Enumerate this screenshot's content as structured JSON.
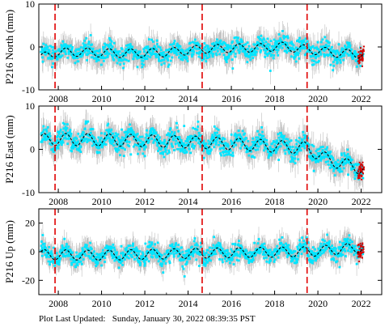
{
  "footer": {
    "label": "Plot Last Updated:",
    "timestamp": "Sunday, January 30, 2022 08:39:35 PST"
  },
  "colors": {
    "errorbar": "#b4b4b4",
    "data": "#00e5ff",
    "model": "#000000",
    "recent": "#d40000",
    "event_line": "#e00000"
  },
  "chart_data": [
    {
      "type": "scatter",
      "title": "",
      "ylabel": "P216 North (mm)",
      "xlim": [
        2007.1,
        2022.95
      ],
      "ylim": [
        -10,
        10
      ],
      "x_ticks": [
        2008,
        2010,
        2012,
        2014,
        2016,
        2018,
        2020,
        2022
      ],
      "x_tick_labels": [
        "2008",
        "2010",
        "2012",
        "2014",
        "2016",
        "2018",
        "2020",
        "2022"
      ],
      "y_ticks": [
        -10,
        0,
        10
      ],
      "y_tick_labels": [
        "-10",
        "0",
        "10"
      ],
      "event_lines_x": [
        2007.85,
        2014.65,
        2019.5
      ],
      "model_keypoints": {
        "x": [
          2007.2,
          2007.85,
          2009,
          2011,
          2013,
          2014.65,
          2016,
          2017.5,
          2018.2,
          2019.5,
          2021,
          2022.1
        ],
        "y": [
          -2.5,
          -1.3,
          -1.2,
          -1.5,
          -1.3,
          -0.5,
          -0.3,
          -0.2,
          0.2,
          -0.6,
          -1.5,
          -1.6
        ]
      },
      "seasonal_amplitude": 1.0,
      "noise_spread": 2.2
    },
    {
      "type": "scatter",
      "title": "",
      "ylabel": "P216 East (mm)",
      "xlim": [
        2007.1,
        2022.95
      ],
      "ylim": [
        -10,
        10
      ],
      "x_ticks": [
        2008,
        2010,
        2012,
        2014,
        2016,
        2018,
        2020,
        2022
      ],
      "x_tick_labels": [
        "2008",
        "2010",
        "2012",
        "2014",
        "2016",
        "2018",
        "2020",
        "2022"
      ],
      "y_ticks": [
        -10,
        0,
        10
      ],
      "y_tick_labels": [
        "-10",
        "0",
        "10"
      ],
      "event_lines_x": [
        2007.85,
        2014.65,
        2019.5
      ],
      "model_keypoints": {
        "x": [
          2007.2,
          2007.85,
          2010,
          2012,
          2014.65,
          2017,
          2019.5,
          2020.5,
          2022.1
        ],
        "y": [
          2.2,
          2.3,
          2.2,
          2.0,
          1.6,
          1.0,
          0.3,
          -2.5,
          -4.5
        ]
      },
      "seasonal_amplitude": 1.4,
      "noise_spread": 2.3
    },
    {
      "type": "scatter",
      "title": "",
      "ylabel": "P216 Up (mm)",
      "xlim": [
        2007.1,
        2022.95
      ],
      "ylim": [
        -30,
        30
      ],
      "x_ticks": [
        2008,
        2010,
        2012,
        2014,
        2016,
        2018,
        2020,
        2022
      ],
      "x_tick_labels": [
        "2008",
        "2010",
        "2012",
        "2014",
        "2016",
        "2018",
        "2020",
        "2022"
      ],
      "y_ticks": [
        -20,
        0,
        20
      ],
      "y_tick_labels": [
        "-20",
        "0",
        "20"
      ],
      "event_lines_x": [
        2007.85,
        2014.65,
        2019.5
      ],
      "model_keypoints": {
        "x": [
          2007.2,
          2010,
          2014.65,
          2017,
          2019.5,
          2022.1
        ],
        "y": [
          -2.0,
          -2.5,
          -1.0,
          -0.5,
          0.0,
          3.0
        ]
      },
      "seasonal_amplitude": 3.5,
      "noise_spread": 6.0
    }
  ]
}
